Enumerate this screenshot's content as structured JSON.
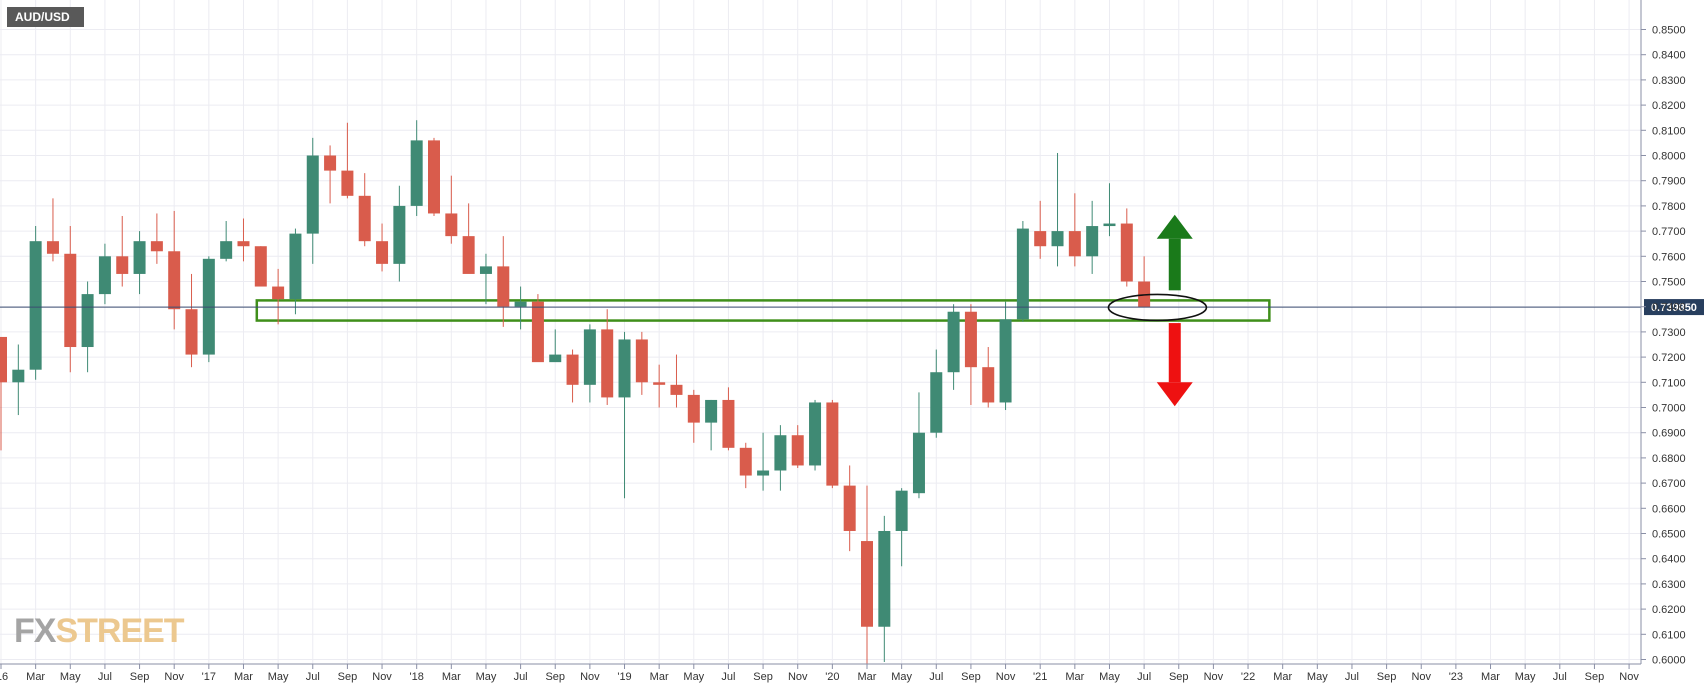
{
  "chart_data": {
    "type": "candlestick",
    "symbol": "AUD/USD",
    "ylim": [
      0.5985,
      0.8575
    ],
    "y_ticks": [
      0.85,
      0.84,
      0.83,
      0.82,
      0.81,
      0.8,
      0.79,
      0.78,
      0.77,
      0.76,
      0.75,
      0.74,
      0.73,
      0.72,
      0.71,
      0.7,
      0.69,
      0.68,
      0.67,
      0.66,
      0.65,
      0.64,
      0.63,
      0.62,
      0.61,
      0.6
    ],
    "y_tick_labels": [
      "0.8500",
      "0.8400",
      "0.8300",
      "0.8200",
      "0.8100",
      "0.8000",
      "0.7900",
      "0.7800",
      "0.7700",
      "0.7600",
      "0.7500",
      "0.7400",
      "0.7300",
      "0.7200",
      "0.7100",
      "0.7000",
      "0.6900",
      "0.6800",
      "0.6700",
      "0.6600",
      "0.6500",
      "0.6400",
      "0.6300",
      "0.6200",
      "0.6100",
      "0.6000"
    ],
    "x_ticks": [
      "'16",
      "Mar",
      "May",
      "Jul",
      "Sep",
      "Nov",
      "'17",
      "Mar",
      "May",
      "Jul",
      "Sep",
      "Nov",
      "'18",
      "Mar",
      "May",
      "Jul",
      "Sep",
      "Nov",
      "'19",
      "Mar",
      "May",
      "Jul",
      "Sep",
      "Nov",
      "'20",
      "Mar",
      "May",
      "Jul",
      "Sep",
      "Nov",
      "'21",
      "Mar",
      "May",
      "Jul",
      "Sep",
      "Nov",
      "'22",
      "Mar",
      "May",
      "Jul",
      "Sep",
      "Nov",
      "'23",
      "Mar",
      "May",
      "Jul",
      "Sep",
      "Nov"
    ],
    "x_tick_index": [
      0,
      2,
      4,
      6,
      8,
      10,
      12,
      14,
      16,
      18,
      20,
      22,
      24,
      26,
      28,
      30,
      32,
      34,
      36,
      38,
      40,
      42,
      44,
      46,
      48,
      50,
      52,
      54,
      56,
      58,
      60,
      62,
      64,
      66,
      68,
      70,
      72,
      74,
      76,
      78,
      80,
      82,
      84,
      86,
      88,
      90,
      92,
      94
    ],
    "candles": [
      {
        "date": "2016-01",
        "o": 0.728,
        "h": 0.728,
        "l": 0.683,
        "c": 0.71
      },
      {
        "date": "2016-02",
        "o": 0.71,
        "h": 0.725,
        "l": 0.697,
        "c": 0.715
      },
      {
        "date": "2016-03",
        "o": 0.715,
        "h": 0.772,
        "l": 0.711,
        "c": 0.766
      },
      {
        "date": "2016-04",
        "o": 0.766,
        "h": 0.783,
        "l": 0.758,
        "c": 0.761
      },
      {
        "date": "2016-05",
        "o": 0.761,
        "h": 0.772,
        "l": 0.714,
        "c": 0.724
      },
      {
        "date": "2016-06",
        "o": 0.724,
        "h": 0.75,
        "l": 0.714,
        "c": 0.745
      },
      {
        "date": "2016-07",
        "o": 0.745,
        "h": 0.765,
        "l": 0.741,
        "c": 0.76
      },
      {
        "date": "2016-08",
        "o": 0.76,
        "h": 0.776,
        "l": 0.748,
        "c": 0.753
      },
      {
        "date": "2016-09",
        "o": 0.753,
        "h": 0.77,
        "l": 0.745,
        "c": 0.766
      },
      {
        "date": "2016-10",
        "o": 0.766,
        "h": 0.777,
        "l": 0.757,
        "c": 0.762
      },
      {
        "date": "2016-11",
        "o": 0.762,
        "h": 0.778,
        "l": 0.731,
        "c": 0.739
      },
      {
        "date": "2016-12",
        "o": 0.739,
        "h": 0.753,
        "l": 0.716,
        "c": 0.721
      },
      {
        "date": "2017-01",
        "o": 0.721,
        "h": 0.76,
        "l": 0.718,
        "c": 0.759
      },
      {
        "date": "2017-02",
        "o": 0.759,
        "h": 0.774,
        "l": 0.758,
        "c": 0.766
      },
      {
        "date": "2017-03",
        "o": 0.766,
        "h": 0.775,
        "l": 0.758,
        "c": 0.764
      },
      {
        "date": "2017-04",
        "o": 0.764,
        "h": 0.764,
        "l": 0.749,
        "c": 0.748
      },
      {
        "date": "2017-05",
        "o": 0.748,
        "h": 0.755,
        "l": 0.733,
        "c": 0.743
      },
      {
        "date": "2017-06",
        "o": 0.743,
        "h": 0.771,
        "l": 0.737,
        "c": 0.769
      },
      {
        "date": "2017-07",
        "o": 0.769,
        "h": 0.807,
        "l": 0.757,
        "c": 0.8
      },
      {
        "date": "2017-08",
        "o": 0.8,
        "h": 0.804,
        "l": 0.781,
        "c": 0.794
      },
      {
        "date": "2017-09",
        "o": 0.794,
        "h": 0.813,
        "l": 0.783,
        "c": 0.784
      },
      {
        "date": "2017-10",
        "o": 0.784,
        "h": 0.793,
        "l": 0.764,
        "c": 0.766
      },
      {
        "date": "2017-11",
        "o": 0.766,
        "h": 0.773,
        "l": 0.754,
        "c": 0.757
      },
      {
        "date": "2017-12",
        "o": 0.757,
        "h": 0.788,
        "l": 0.75,
        "c": 0.78
      },
      {
        "date": "2018-01",
        "o": 0.78,
        "h": 0.814,
        "l": 0.776,
        "c": 0.806
      },
      {
        "date": "2018-02",
        "o": 0.806,
        "h": 0.807,
        "l": 0.776,
        "c": 0.777
      },
      {
        "date": "2018-03",
        "o": 0.777,
        "h": 0.792,
        "l": 0.765,
        "c": 0.768
      },
      {
        "date": "2018-04",
        "o": 0.768,
        "h": 0.781,
        "l": 0.754,
        "c": 0.753
      },
      {
        "date": "2018-05",
        "o": 0.753,
        "h": 0.761,
        "l": 0.741,
        "c": 0.756
      },
      {
        "date": "2018-06",
        "o": 0.756,
        "h": 0.768,
        "l": 0.732,
        "c": 0.74
      },
      {
        "date": "2018-07",
        "o": 0.74,
        "h": 0.748,
        "l": 0.731,
        "c": 0.742
      },
      {
        "date": "2018-08",
        "o": 0.742,
        "h": 0.745,
        "l": 0.72,
        "c": 0.718
      },
      {
        "date": "2018-09",
        "o": 0.718,
        "h": 0.731,
        "l": 0.719,
        "c": 0.721
      },
      {
        "date": "2018-10",
        "o": 0.721,
        "h": 0.723,
        "l": 0.702,
        "c": 0.709
      },
      {
        "date": "2018-11",
        "o": 0.709,
        "h": 0.733,
        "l": 0.702,
        "c": 0.731
      },
      {
        "date": "2018-12",
        "o": 0.731,
        "h": 0.739,
        "l": 0.701,
        "c": 0.704
      },
      {
        "date": "2019-01",
        "o": 0.704,
        "h": 0.73,
        "l": 0.664,
        "c": 0.727
      },
      {
        "date": "2019-02",
        "o": 0.727,
        "h": 0.73,
        "l": 0.705,
        "c": 0.71
      },
      {
        "date": "2019-03",
        "o": 0.71,
        "h": 0.717,
        "l": 0.7,
        "c": 0.709
      },
      {
        "date": "2019-04",
        "o": 0.709,
        "h": 0.721,
        "l": 0.7,
        "c": 0.705
      },
      {
        "date": "2019-05",
        "o": 0.705,
        "h": 0.707,
        "l": 0.686,
        "c": 0.694
      },
      {
        "date": "2019-06",
        "o": 0.694,
        "h": 0.703,
        "l": 0.683,
        "c": 0.703
      },
      {
        "date": "2019-07",
        "o": 0.703,
        "h": 0.708,
        "l": 0.683,
        "c": 0.684
      },
      {
        "date": "2019-08",
        "o": 0.684,
        "h": 0.686,
        "l": 0.668,
        "c": 0.673
      },
      {
        "date": "2019-09",
        "o": 0.673,
        "h": 0.69,
        "l": 0.667,
        "c": 0.675
      },
      {
        "date": "2019-10",
        "o": 0.675,
        "h": 0.693,
        "l": 0.667,
        "c": 0.689
      },
      {
        "date": "2019-11",
        "o": 0.689,
        "h": 0.693,
        "l": 0.676,
        "c": 0.677
      },
      {
        "date": "2019-12",
        "o": 0.677,
        "h": 0.703,
        "l": 0.675,
        "c": 0.702
      },
      {
        "date": "2020-01",
        "o": 0.702,
        "h": 0.703,
        "l": 0.668,
        "c": 0.669
      },
      {
        "date": "2020-02",
        "o": 0.669,
        "h": 0.677,
        "l": 0.643,
        "c": 0.651
      },
      {
        "date": "2020-03",
        "o": 0.647,
        "h": 0.669,
        "l": 0.586,
        "c": 0.613
      },
      {
        "date": "2020-04",
        "o": 0.613,
        "h": 0.657,
        "l": 0.599,
        "c": 0.651
      },
      {
        "date": "2020-05",
        "o": 0.651,
        "h": 0.668,
        "l": 0.637,
        "c": 0.667
      },
      {
        "date": "2020-06",
        "o": 0.666,
        "h": 0.706,
        "l": 0.664,
        "c": 0.69
      },
      {
        "date": "2020-07",
        "o": 0.69,
        "h": 0.723,
        "l": 0.688,
        "c": 0.714
      },
      {
        "date": "2020-08",
        "o": 0.714,
        "h": 0.741,
        "l": 0.707,
        "c": 0.738
      },
      {
        "date": "2020-09",
        "o": 0.738,
        "h": 0.741,
        "l": 0.701,
        "c": 0.716
      },
      {
        "date": "2020-10",
        "o": 0.716,
        "h": 0.724,
        "l": 0.7,
        "c": 0.702
      },
      {
        "date": "2020-11",
        "o": 0.702,
        "h": 0.742,
        "l": 0.699,
        "c": 0.735
      },
      {
        "date": "2020-12",
        "o": 0.735,
        "h": 0.774,
        "l": 0.734,
        "c": 0.771
      },
      {
        "date": "2021-01",
        "o": 0.77,
        "h": 0.782,
        "l": 0.759,
        "c": 0.764
      },
      {
        "date": "2021-02",
        "o": 0.764,
        "h": 0.801,
        "l": 0.756,
        "c": 0.77
      },
      {
        "date": "2021-03",
        "o": 0.77,
        "h": 0.785,
        "l": 0.756,
        "c": 0.76
      },
      {
        "date": "2021-04",
        "o": 0.76,
        "h": 0.782,
        "l": 0.753,
        "c": 0.772
      },
      {
        "date": "2021-05",
        "o": 0.772,
        "h": 0.789,
        "l": 0.768,
        "c": 0.773
      },
      {
        "date": "2021-06",
        "o": 0.773,
        "h": 0.779,
        "l": 0.748,
        "c": 0.75
      },
      {
        "date": "2021-07",
        "o": 0.75,
        "h": 0.76,
        "l": 0.741,
        "c": 0.7399
      }
    ],
    "last_price_label": "0.739850",
    "last_price": 0.73985,
    "colors": {
      "up": "#3f8a74",
      "down": "#d95c4c",
      "zone": "#3f8f1a",
      "arrow_up": "#1a7a1a",
      "arrow_down": "#ee1111",
      "price_tag": "#273e5e"
    },
    "annotations": {
      "zone": {
        "x_from": "2017-04",
        "x_to": "2022-02",
        "y_top": 0.7425,
        "y_bottom": 0.7345
      },
      "ellipse": {
        "center_date": "2021-08",
        "y": 0.7397
      },
      "arrow_up": {
        "date": "2021-09",
        "from": 0.7465,
        "to": 0.7765
      },
      "arrow_down": {
        "date": "2021-09",
        "from": 0.7335,
        "to": 0.7005
      }
    }
  },
  "symbol_label": "AUD/USD",
  "watermark": {
    "fx": "FX",
    "street": "STREET"
  }
}
